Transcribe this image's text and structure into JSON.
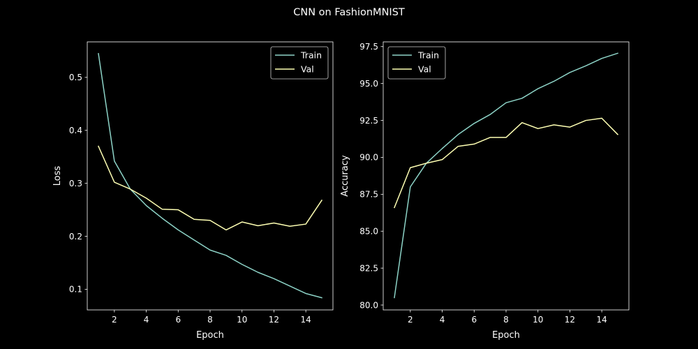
{
  "figure_title": "CNN on FashionMNIST",
  "colors": {
    "background": "#000000",
    "foreground": "#ffffff",
    "train": "#8dd3c7",
    "val": "#feffb3"
  },
  "chart_data": [
    {
      "type": "line",
      "title": "",
      "xlabel": "Epoch",
      "ylabel": "Loss",
      "xlim": [
        0.3,
        15.7
      ],
      "ylim": [
        0.061,
        0.567
      ],
      "xticks": [
        2,
        4,
        6,
        8,
        10,
        12,
        14
      ],
      "yticks": [
        0.1,
        0.2,
        0.3,
        0.4,
        0.5
      ],
      "ytick_labels": [
        "0.1",
        "0.2",
        "0.3",
        "0.4",
        "0.5"
      ],
      "grid": false,
      "legend": "upper-right",
      "x": [
        1,
        2,
        3,
        4,
        5,
        6,
        7,
        8,
        9,
        10,
        11,
        12,
        13,
        14,
        15
      ],
      "series": [
        {
          "name": "Train",
          "color": "#8dd3c7",
          "values": [
            0.545,
            0.342,
            0.289,
            0.258,
            0.234,
            0.212,
            0.193,
            0.174,
            0.164,
            0.147,
            0.132,
            0.12,
            0.106,
            0.092,
            0.084
          ]
        },
        {
          "name": "Val",
          "color": "#feffb3",
          "values": [
            0.37,
            0.302,
            0.289,
            0.272,
            0.251,
            0.25,
            0.232,
            0.23,
            0.212,
            0.227,
            0.22,
            0.225,
            0.219,
            0.223,
            0.268
          ]
        }
      ]
    },
    {
      "type": "line",
      "title": "",
      "xlabel": "Epoch",
      "ylabel": "Accuracy",
      "xlim": [
        0.3,
        15.7
      ],
      "ylim": [
        79.67,
        97.82
      ],
      "xticks": [
        2,
        4,
        6,
        8,
        10,
        12,
        14
      ],
      "yticks": [
        80.0,
        82.5,
        85.0,
        87.5,
        90.0,
        92.5,
        95.0,
        97.5
      ],
      "ytick_labels": [
        "80.0",
        "82.5",
        "85.0",
        "87.5",
        "90.0",
        "92.5",
        "95.0",
        "97.5"
      ],
      "grid": false,
      "legend": "upper-left",
      "x": [
        1,
        2,
        3,
        4,
        5,
        6,
        7,
        8,
        9,
        10,
        11,
        12,
        13,
        14,
        15
      ],
      "series": [
        {
          "name": "Train",
          "color": "#8dd3c7",
          "values": [
            80.5,
            88.0,
            89.6,
            90.6,
            91.55,
            92.3,
            92.9,
            93.7,
            94.0,
            94.65,
            95.15,
            95.75,
            96.2,
            96.7,
            97.05
          ]
        },
        {
          "name": "Val",
          "color": "#feffb3",
          "values": [
            86.6,
            89.3,
            89.6,
            89.85,
            90.75,
            90.9,
            91.35,
            91.35,
            92.35,
            91.95,
            92.2,
            92.05,
            92.5,
            92.65,
            91.55
          ]
        }
      ]
    }
  ]
}
